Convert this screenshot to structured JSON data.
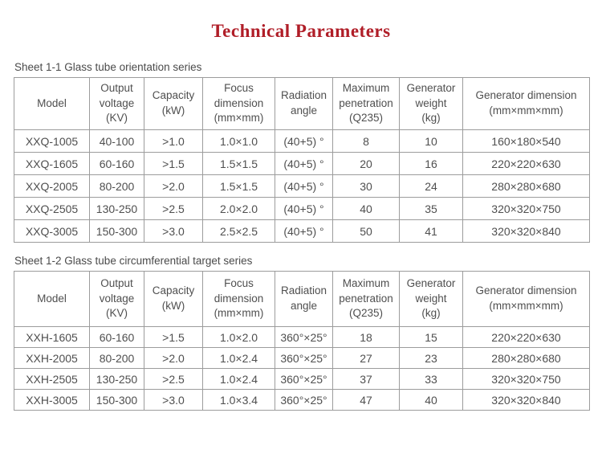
{
  "page": {
    "title": "Technical Parameters"
  },
  "colors": {
    "title": "#b01e28",
    "body_text": "#4f4f4f",
    "table_border": "#9c9c9c"
  },
  "tables": [
    {
      "caption": "Sheet 1-1 Glass tube orientation series",
      "headers": [
        "Model",
        "Output\nvoltage\n(KV)",
        "Capacity\n(kW)",
        "Focus\ndimension\n(mm×mm)",
        "Radiation\nangle",
        "Maximum\npenetration\n(Q235)",
        "Generator\nweight\n(kg)",
        "Generator dimension\n(mm×mm×mm)"
      ],
      "rows": [
        [
          "XXQ-1005",
          "40-100",
          ">1.0",
          "1.0×1.0",
          "(40+5) °",
          "8",
          "10",
          "160×180×540"
        ],
        [
          "XXQ-1605",
          "60-160",
          ">1.5",
          "1.5×1.5",
          "(40+5) °",
          "20",
          "16",
          "220×220×630"
        ],
        [
          "XXQ-2005",
          "80-200",
          ">2.0",
          "1.5×1.5",
          "(40+5) °",
          "30",
          "24",
          "280×280×680"
        ],
        [
          "XXQ-2505",
          "130-250",
          ">2.5",
          "2.0×2.0",
          "(40+5) °",
          "40",
          "35",
          "320×320×750"
        ],
        [
          "XXQ-3005",
          "150-300",
          ">3.0",
          "2.5×2.5",
          "(40+5) °",
          "50",
          "41",
          "320×320×840"
        ]
      ]
    },
    {
      "caption": "Sheet 1-2 Glass tube circumferential target series",
      "headers": [
        "Model",
        "Output\nvoltage\n(KV)",
        "Capacity\n(kW)",
        "Focus\ndimension\n(mm×mm)",
        "Radiation\nangle",
        "Maximum\npenetration\n(Q235)",
        "Generator\nweight\n(kg)",
        "Generator dimension\n(mm×mm×mm)"
      ],
      "rows": [
        [
          "XXH-1605",
          "60-160",
          ">1.5",
          "1.0×2.0",
          "360°×25°",
          "18",
          "15",
          "220×220×630"
        ],
        [
          "XXH-2005",
          "80-200",
          ">2.0",
          "1.0×2.4",
          "360°×25°",
          "27",
          "23",
          "280×280×680"
        ],
        [
          "XXH-2505",
          "130-250",
          ">2.5",
          "1.0×2.4",
          "360°×25°",
          "37",
          "33",
          "320×320×750"
        ],
        [
          "XXH-3005",
          "150-300",
          ">3.0",
          "1.0×3.4",
          "360°×25°",
          "47",
          "40",
          "320×320×840"
        ]
      ]
    }
  ]
}
